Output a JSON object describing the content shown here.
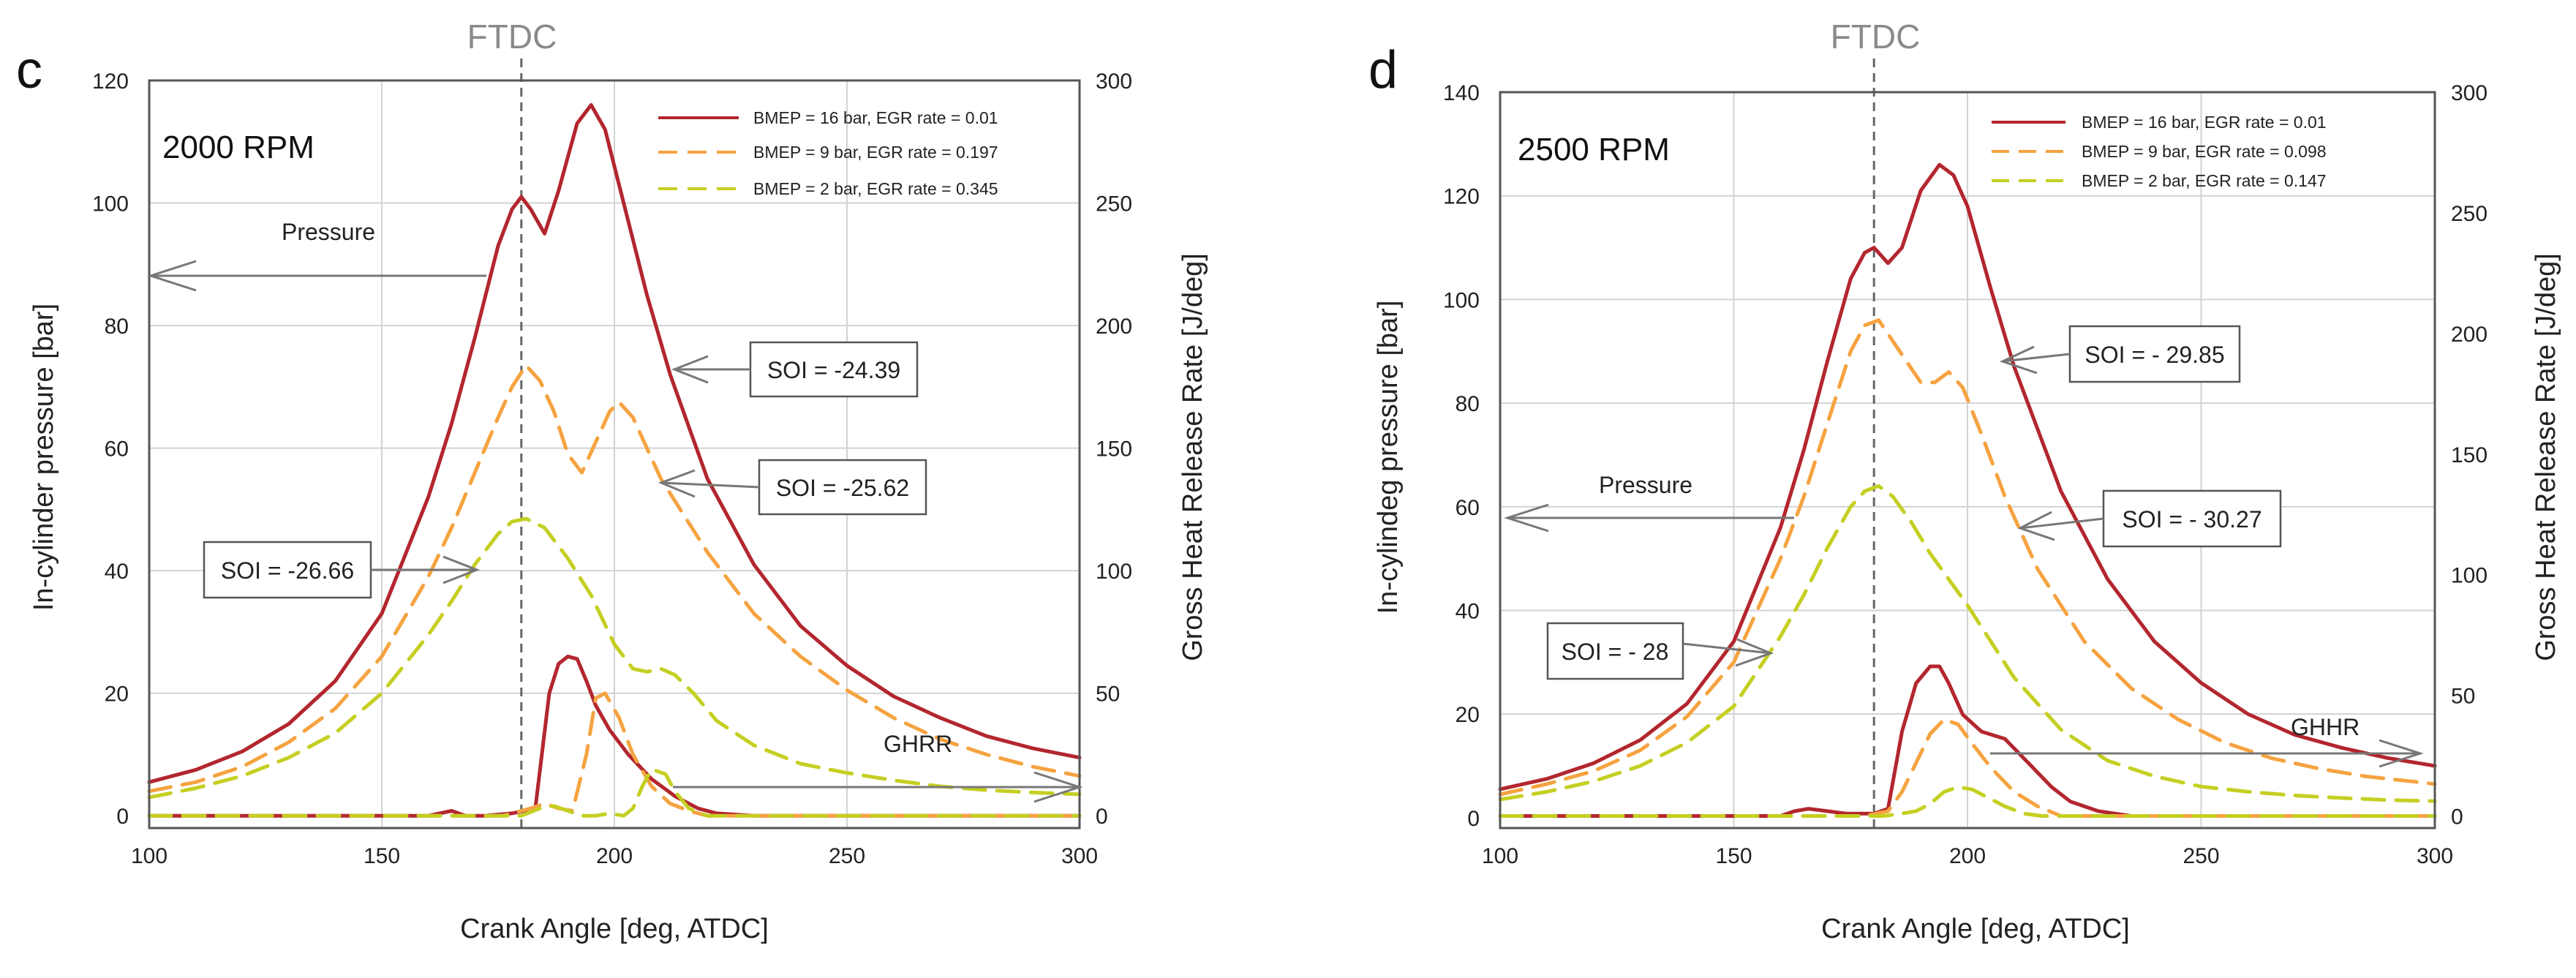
{
  "chart_data": [
    {
      "type": "line",
      "panel_letter": "c",
      "rpm_label": "2000 RPM",
      "ftdc_label": "FTDC",
      "ftdc_x": 180,
      "xlabel": "Crank Angle [deg, ATDC]",
      "ylabel": "In-cylinder pressure [bar]",
      "y2label": "Gross Heat Release Rate [J/deg]",
      "xlim": [
        100,
        300
      ],
      "ylim": [
        -2,
        120
      ],
      "y2lim": [
        -5,
        300
      ],
      "xticks": [
        100,
        150,
        200,
        250,
        300
      ],
      "yticks": [
        0,
        20,
        40,
        60,
        80,
        100,
        120
      ],
      "y2ticks": [
        0,
        50,
        100,
        150,
        200,
        250,
        300
      ],
      "legend": [
        {
          "name": "BMEP = 16 bar, EGR rate = 0.01",
          "color": "#b3262e",
          "dash": "solid"
        },
        {
          "name": "BMEP = 9 bar, EGR rate = 0.197",
          "color": "#f5a340",
          "dash": "dashed"
        },
        {
          "name": "BMEP = 2 bar, EGR rate = 0.345",
          "color": "#c5cf22",
          "dash": "dashed"
        }
      ],
      "pressure_series": [
        {
          "name": "BMEP = 16 bar, EGR rate = 0.01",
          "color": "#b3262e",
          "dash": "solid",
          "x": [
            100,
            110,
            120,
            130,
            140,
            150,
            160,
            165,
            170,
            175,
            178,
            180,
            182,
            185,
            188,
            192,
            195,
            198,
            202,
            207,
            212,
            220,
            230,
            240,
            250,
            260,
            270,
            280,
            290,
            300
          ],
          "y": [
            5.5,
            7.5,
            10.5,
            15,
            22,
            33,
            52,
            64,
            78,
            93,
            99,
            101,
            99,
            95,
            102,
            113,
            116,
            112,
            100,
            85,
            72,
            55,
            41,
            31,
            24.5,
            19.5,
            16,
            13,
            11,
            9.5
          ]
        },
        {
          "name": "BMEP = 9 bar, EGR rate = 0.197",
          "color": "#f5a340",
          "dash": "dashed",
          "x": [
            100,
            110,
            120,
            130,
            140,
            150,
            160,
            165,
            170,
            175,
            178,
            181,
            184,
            187,
            190,
            193,
            196,
            199,
            201,
            204,
            210,
            220,
            230,
            240,
            250,
            260,
            270,
            280,
            290,
            300
          ],
          "y": [
            4,
            5.5,
            8,
            12,
            17.5,
            26,
            39,
            47,
            56,
            65,
            70,
            73.5,
            71,
            66,
            59,
            56,
            61,
            66,
            67.5,
            65,
            55,
            43,
            33,
            26,
            20.5,
            16,
            12.5,
            10,
            8,
            6.5
          ]
        },
        {
          "name": "BMEP = 2 bar, EGR rate = 0.345",
          "color": "#c5cf22",
          "dash": "dashed",
          "x": [
            100,
            110,
            120,
            130,
            140,
            150,
            160,
            165,
            170,
            175,
            178,
            181,
            185,
            190,
            195,
            200,
            204,
            207,
            210,
            213,
            217,
            222,
            230,
            240,
            250,
            260,
            270,
            280,
            290,
            300
          ],
          "y": [
            3,
            4.5,
            6.5,
            9.5,
            13.5,
            20,
            29.5,
            35,
            41,
            46,
            48,
            48.5,
            47,
            42,
            36,
            28,
            24,
            23.5,
            24,
            23,
            20,
            15.5,
            11.5,
            8.5,
            7,
            5.8,
            4.8,
            4.2,
            3.8,
            3.5
          ]
        }
      ],
      "hrr_series": [
        {
          "name": "BMEP = 16 bar, EGR rate = 0.01",
          "color": "#b3262e",
          "dash": "solid",
          "x": [
            100,
            160,
            165,
            168,
            172,
            178,
            183,
            186,
            188,
            190,
            192,
            194,
            196,
            199,
            203,
            208,
            213,
            218,
            222,
            230,
            300
          ],
          "y": [
            0,
            0,
            2,
            0,
            0,
            1,
            3,
            50,
            62,
            65,
            64,
            55,
            45,
            35,
            25,
            15,
            8,
            3,
            1,
            0,
            0
          ]
        },
        {
          "name": "BMEP = 9 bar, EGR rate = 0.197",
          "color": "#f5a340",
          "dash": "dashed",
          "x": [
            100,
            176,
            182,
            185,
            188,
            191,
            194,
            196,
            198,
            201,
            204,
            208,
            212,
            216,
            220,
            300
          ],
          "y": [
            0,
            0,
            3,
            5,
            3,
            2,
            25,
            48,
            50,
            40,
            25,
            12,
            5,
            2,
            0,
            0
          ]
        },
        {
          "name": "BMEP = 2 bar, EGR rate = 0.345",
          "color": "#c5cf22",
          "dash": "dashed",
          "x": [
            100,
            180,
            184,
            187,
            190,
            193,
            196,
            199,
            202,
            204,
            206,
            208,
            211,
            213,
            216,
            220,
            300
          ],
          "y": [
            0,
            0,
            3,
            4,
            2,
            0,
            0,
            1,
            0,
            3,
            12,
            19,
            17,
            10,
            3,
            0,
            0
          ]
        }
      ],
      "annotations": {
        "pressure_label": "Pressure",
        "ghhr_label": "GHRR",
        "soi": [
          {
            "label": "SOI = -24.39"
          },
          {
            "label": "SOI = -25.62"
          },
          {
            "label": "SOI = -26.66"
          }
        ]
      }
    },
    {
      "type": "line",
      "panel_letter": "d",
      "rpm_label": "2500 RPM",
      "ftdc_label": "FTDC",
      "ftdc_x": 180,
      "xlabel": "Crank Angle [deg, ATDC]",
      "ylabel": "In-cylindeg pressure [bar]",
      "y2label": "Gross Heat Release Rate [J/deg]",
      "xlim": [
        100,
        300
      ],
      "ylim": [
        -2,
        140
      ],
      "y2lim": [
        -5,
        300
      ],
      "xticks": [
        100,
        150,
        200,
        250,
        300
      ],
      "yticks": [
        0,
        20,
        40,
        60,
        80,
        100,
        120,
        140
      ],
      "y2ticks": [
        0,
        50,
        100,
        150,
        200,
        250,
        300
      ],
      "legend": [
        {
          "name": "BMEP = 16 bar, EGR rate = 0.01",
          "color": "#b3262e",
          "dash": "solid"
        },
        {
          "name": "BMEP = 9 bar, EGR rate = 0.098",
          "color": "#f5a340",
          "dash": "dashed"
        },
        {
          "name": "BMEP = 2 bar, EGR rate = 0.147",
          "color": "#c5cf22",
          "dash": "dashed"
        }
      ],
      "pressure_series": [
        {
          "name": "BMEP = 16 bar, EGR rate = 0.01",
          "color": "#b3262e",
          "dash": "solid",
          "x": [
            100,
            110,
            120,
            130,
            140,
            150,
            160,
            165,
            170,
            175,
            178,
            180,
            183,
            186,
            190,
            194,
            197,
            200,
            205,
            210,
            220,
            230,
            240,
            250,
            260,
            270,
            280,
            290,
            300
          ],
          "y": [
            5.5,
            7.5,
            10.5,
            15,
            22,
            34,
            56,
            71,
            88,
            104,
            109,
            110,
            107,
            110,
            121,
            126,
            124,
            118,
            102,
            87,
            63,
            46,
            34,
            26,
            20,
            16,
            13.5,
            11.5,
            10
          ]
        },
        {
          "name": "BMEP = 9 bar, EGR rate = 0.098",
          "color": "#f5a340",
          "dash": "dashed",
          "x": [
            100,
            110,
            120,
            130,
            140,
            150,
            160,
            165,
            170,
            175,
            178,
            181,
            184,
            187,
            190,
            193,
            196,
            199,
            203,
            208,
            215,
            225,
            235,
            245,
            255,
            265,
            275,
            285,
            295,
            300
          ],
          "y": [
            4.5,
            6.5,
            9,
            13,
            19.5,
            30,
            50,
            62,
            76,
            90,
            95,
            96,
            92,
            88,
            84,
            84,
            86,
            83,
            74,
            62,
            48,
            34,
            25,
            19,
            14.5,
            11.5,
            9.5,
            8,
            7,
            6.5
          ]
        },
        {
          "name": "BMEP = 2 bar, EGR rate = 0.147",
          "color": "#c5cf22",
          "dash": "dashed",
          "x": [
            100,
            110,
            120,
            130,
            140,
            150,
            160,
            165,
            170,
            175,
            178,
            181,
            184,
            188,
            192,
            196,
            200,
            205,
            210,
            220,
            230,
            240,
            250,
            260,
            270,
            280,
            290,
            300
          ],
          "y": [
            3.5,
            5,
            7,
            10,
            14.5,
            21.5,
            35,
            43,
            52,
            60,
            63,
            64,
            62,
            57,
            51,
            46,
            41,
            34,
            27,
            17,
            11,
            8,
            6,
            5,
            4.3,
            3.8,
            3.4,
            3.2
          ]
        }
      ],
      "hrr_series": [
        {
          "name": "BMEP = 16 bar, EGR rate = 0.01",
          "color": "#b3262e",
          "dash": "solid",
          "x": [
            100,
            160,
            163,
            166,
            170,
            174,
            180,
            183,
            186,
            189,
            192,
            194,
            196,
            199,
            203,
            208,
            213,
            218,
            222,
            228,
            235,
            300
          ],
          "y": [
            0,
            0,
            2,
            3,
            2,
            1,
            1,
            3,
            35,
            55,
            62,
            62,
            55,
            42,
            35,
            32,
            22,
            12,
            6,
            2,
            0,
            0
          ]
        },
        {
          "name": "BMEP = 9 bar, EGR rate = 0.098",
          "color": "#f5a340",
          "dash": "dashed",
          "x": [
            100,
            178,
            183,
            186,
            189,
            192,
            195,
            198,
            201,
            205,
            210,
            215,
            220,
            300
          ],
          "y": [
            0,
            0,
            2,
            10,
            22,
            34,
            40,
            38,
            30,
            20,
            10,
            4,
            0,
            0
          ]
        },
        {
          "name": "BMEP = 2 bar, EGR rate = 0.147",
          "color": "#c5cf22",
          "dash": "dashed",
          "x": [
            100,
            182,
            186,
            189,
            192,
            195,
            198,
            201,
            204,
            208,
            212,
            216,
            300
          ],
          "y": [
            0,
            0,
            1,
            2,
            5,
            10,
            12,
            11,
            8,
            4,
            1,
            0,
            0
          ]
        }
      ],
      "annotations": {
        "pressure_label": "Pressure",
        "ghhr_label": "GHHR",
        "soi": [
          {
            "label": "SOI = - 29.85"
          },
          {
            "label": "SOI = - 30.27"
          },
          {
            "label": "SOI = - 28"
          }
        ]
      }
    }
  ]
}
